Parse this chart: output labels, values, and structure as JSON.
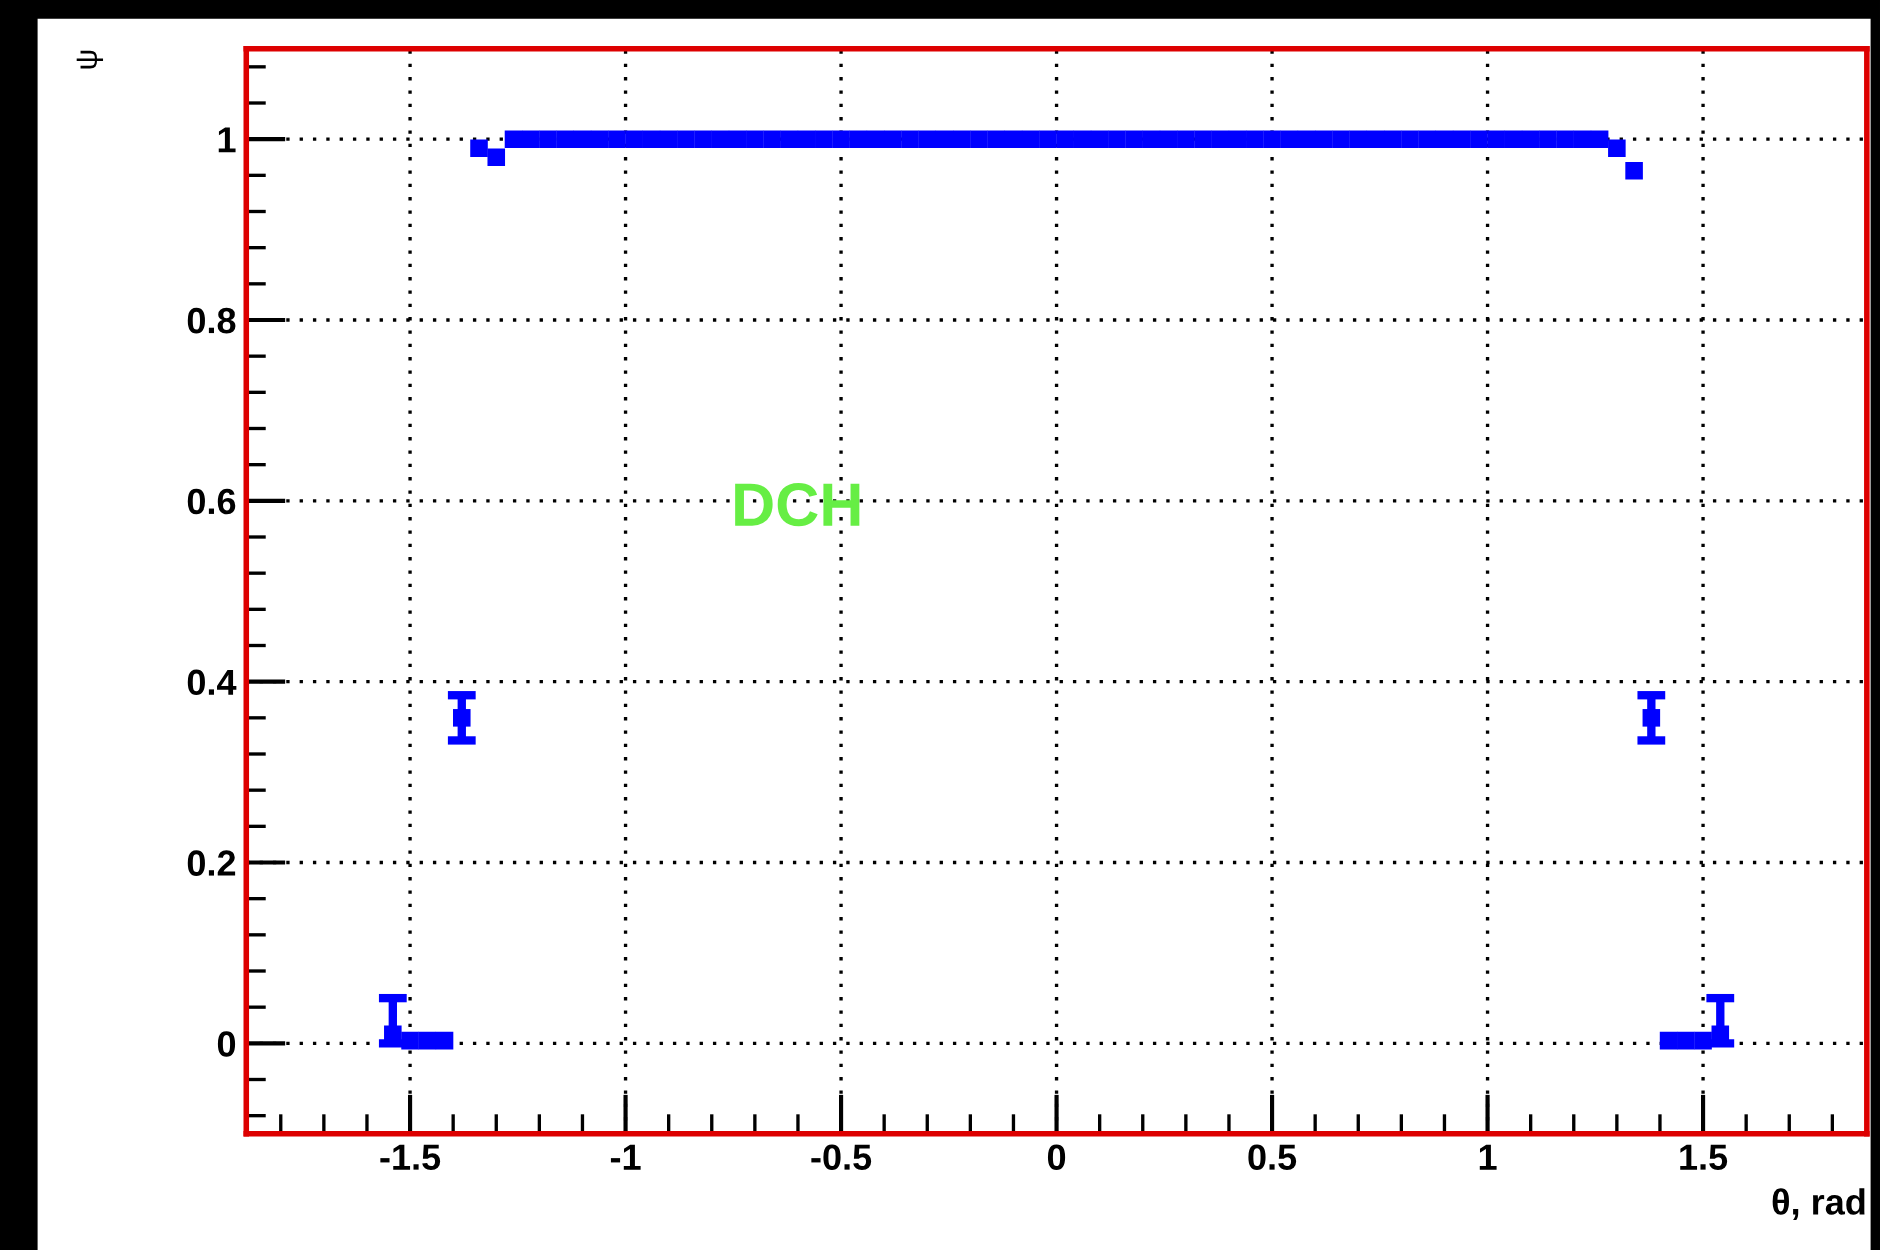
{
  "chart_data": {
    "type": "scatter",
    "xlabel": "θ, rad",
    "ylabel": "ψ",
    "annotations": [
      "DCH"
    ],
    "x": [
      -1.54,
      -1.5,
      -1.46,
      -1.42,
      -1.38,
      -1.34,
      -1.3,
      -1.26,
      -1.22,
      -1.18,
      -1.14,
      -1.1,
      -1.06,
      -1.02,
      -0.98,
      -0.94,
      -0.9,
      -0.86,
      -0.82,
      -0.78,
      -0.74,
      -0.7,
      -0.66,
      -0.62,
      -0.58,
      -0.54,
      -0.5,
      -0.46,
      -0.42,
      -0.38,
      -0.34,
      -0.3,
      -0.26,
      -0.22,
      -0.18,
      -0.14,
      -0.1,
      -0.06,
      -0.02,
      0.02,
      0.06,
      0.1,
      0.14,
      0.18,
      0.22,
      0.26,
      0.3,
      0.34,
      0.38,
      0.42,
      0.46,
      0.5,
      0.54,
      0.58,
      0.62,
      0.66,
      0.7,
      0.74,
      0.78,
      0.82,
      0.86,
      0.9,
      0.94,
      0.98,
      1.02,
      1.06,
      1.1,
      1.14,
      1.18,
      1.22,
      1.26,
      1.3,
      1.34,
      1.38,
      1.42,
      1.46,
      1.5,
      1.54
    ],
    "series": [
      {
        "color": "#0000ff",
        "values": [
          0.01,
          0.003,
          0.003,
          0.003,
          0.36,
          0.99,
          0.98,
          1,
          1,
          1,
          1,
          1,
          1,
          1,
          1,
          1,
          1,
          1,
          1,
          1,
          1,
          1,
          1,
          1,
          1,
          1,
          1,
          1,
          1,
          1,
          1,
          1,
          1,
          1,
          1,
          1,
          1,
          1,
          1,
          1,
          1,
          1,
          1,
          1,
          1,
          1,
          1,
          1,
          1,
          1,
          1,
          1,
          1,
          1,
          1,
          1,
          1,
          1,
          1,
          1,
          1,
          1,
          1,
          1,
          1,
          1,
          1,
          1,
          1,
          1,
          1,
          0.99,
          0.965,
          0.36,
          0.003,
          0.003,
          0.003,
          0.01
        ],
        "errors": [
          [
            0,
            0.05
          ],
          null,
          null,
          null,
          [
            0.335,
            0.385
          ],
          null,
          null,
          null,
          null,
          null,
          null,
          null,
          null,
          null,
          null,
          null,
          null,
          null,
          null,
          null,
          null,
          null,
          null,
          null,
          null,
          null,
          null,
          null,
          null,
          null,
          null,
          null,
          null,
          null,
          null,
          null,
          null,
          null,
          null,
          null,
          null,
          null,
          null,
          null,
          null,
          null,
          null,
          null,
          null,
          null,
          null,
          null,
          null,
          null,
          null,
          null,
          null,
          null,
          null,
          null,
          null,
          null,
          null,
          null,
          null,
          null,
          null,
          null,
          null,
          null,
          null,
          null,
          null,
          [
            0.335,
            0.385
          ],
          null,
          null,
          null,
          [
            0,
            0.05
          ]
        ]
      }
    ],
    "marker": "square",
    "xlim": [
      -1.88,
      1.88
    ],
    "ylim": [
      -0.1,
      1.1
    ],
    "xticks": [
      -1.5,
      -1,
      -0.5,
      0,
      0.5,
      1,
      1.5
    ],
    "yticks": [
      0,
      0.2,
      0.4,
      0.6,
      0.8,
      1
    ],
    "grid": true
  }
}
